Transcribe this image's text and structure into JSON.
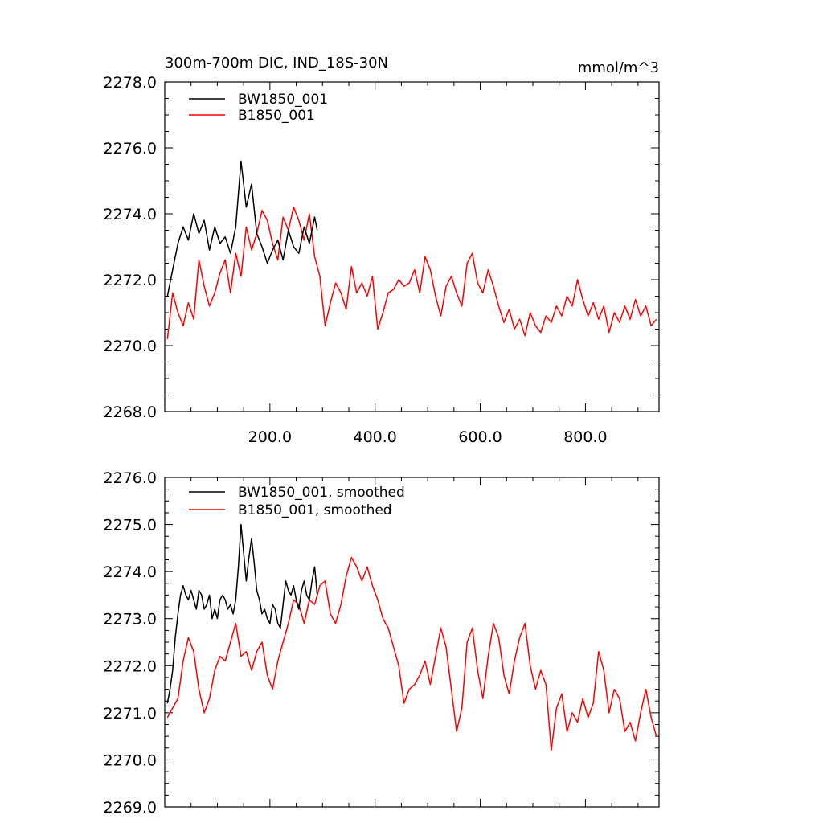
{
  "chart_data": [
    {
      "type": "line",
      "title": "300m-700m DIC, IND_18S-30N",
      "units": "mmol/m^3",
      "xlim": [
        0,
        940
      ],
      "ylim": [
        2268.0,
        2278.0
      ],
      "x_ticks": [
        200,
        400,
        600,
        800
      ],
      "x_tick_labels": [
        "200.0",
        "400.0",
        "600.0",
        "800.0"
      ],
      "y_ticks": [
        2268,
        2270,
        2272,
        2274,
        2276,
        2278
      ],
      "y_tick_labels": [
        "2268.0",
        "2270.0",
        "2272.0",
        "2274.0",
        "2276.0",
        "2278.0"
      ],
      "legend_position": "top-left",
      "series": [
        {
          "name": "BW1850_001",
          "color": "#000000",
          "x": [
            5,
            15,
            25,
            35,
            45,
            55,
            65,
            75,
            85,
            95,
            105,
            115,
            125,
            135,
            145,
            155,
            165,
            175,
            185,
            195,
            205,
            215,
            225,
            235,
            245,
            255,
            265,
            275,
            285,
            290
          ],
          "values": [
            2271.5,
            2272.3,
            2273.1,
            2273.6,
            2273.2,
            2274.0,
            2273.4,
            2273.8,
            2272.9,
            2273.6,
            2273.1,
            2273.3,
            2272.8,
            2273.6,
            2275.6,
            2274.2,
            2274.9,
            2273.4,
            2273.0,
            2272.5,
            2272.9,
            2273.2,
            2272.6,
            2273.5,
            2273.0,
            2272.8,
            2273.6,
            2273.1,
            2273.9,
            2273.5
          ]
        },
        {
          "name": "B1850_001",
          "color": "#ff0000",
          "x": [
            5,
            15,
            25,
            35,
            45,
            55,
            65,
            75,
            85,
            95,
            105,
            115,
            125,
            135,
            145,
            155,
            165,
            175,
            185,
            195,
            205,
            215,
            225,
            235,
            245,
            255,
            265,
            275,
            285,
            295,
            305,
            315,
            325,
            335,
            345,
            355,
            365,
            375,
            385,
            395,
            405,
            415,
            425,
            435,
            445,
            455,
            465,
            475,
            485,
            495,
            505,
            515,
            525,
            535,
            545,
            555,
            565,
            575,
            585,
            595,
            605,
            615,
            625,
            635,
            645,
            655,
            665,
            675,
            685,
            695,
            705,
            715,
            725,
            735,
            745,
            755,
            765,
            775,
            785,
            795,
            805,
            815,
            825,
            835,
            845,
            855,
            865,
            875,
            885,
            895,
            905,
            915,
            925,
            935
          ],
          "values": [
            2270.2,
            2271.6,
            2271.0,
            2270.6,
            2271.3,
            2270.8,
            2272.6,
            2271.8,
            2271.2,
            2271.6,
            2272.2,
            2272.6,
            2271.6,
            2272.8,
            2272.1,
            2273.6,
            2272.9,
            2273.4,
            2274.1,
            2273.8,
            2273.1,
            2272.6,
            2273.9,
            2273.5,
            2274.2,
            2273.8,
            2273.2,
            2274.0,
            2272.7,
            2272.1,
            2270.6,
            2271.3,
            2271.9,
            2271.6,
            2271.1,
            2272.4,
            2271.6,
            2271.9,
            2271.5,
            2272.1,
            2270.5,
            2271.0,
            2271.6,
            2271.7,
            2272.0,
            2271.8,
            2271.9,
            2272.3,
            2271.6,
            2272.7,
            2272.3,
            2271.5,
            2270.9,
            2271.8,
            2272.1,
            2271.6,
            2271.2,
            2272.5,
            2272.8,
            2271.9,
            2271.6,
            2272.3,
            2271.8,
            2271.2,
            2270.7,
            2271.1,
            2270.5,
            2270.8,
            2270.3,
            2271.0,
            2270.6,
            2270.4,
            2270.9,
            2270.7,
            2271.2,
            2270.9,
            2271.5,
            2271.2,
            2272.0,
            2271.4,
            2270.9,
            2271.3,
            2270.8,
            2271.2,
            2270.4,
            2271.0,
            2270.7,
            2271.2,
            2270.8,
            2271.4,
            2270.9,
            2271.2,
            2270.6,
            2270.8
          ]
        }
      ]
    },
    {
      "type": "line",
      "title": "",
      "xlim": [
        0,
        940
      ],
      "ylim": [
        2269.0,
        2276.0
      ],
      "x_ticks": [
        200,
        400,
        600,
        800
      ],
      "x_tick_labels": [
        "",
        "",
        "",
        ""
      ],
      "y_ticks": [
        2269,
        2270,
        2271,
        2272,
        2273,
        2274,
        2275,
        2276
      ],
      "y_tick_labels": [
        "2269.0",
        "2270.0",
        "2271.0",
        "2272.0",
        "2273.0",
        "2274.0",
        "2275.0",
        "2276.0"
      ],
      "legend_position": "top-left",
      "series": [
        {
          "name": "BW1850_001, smoothed",
          "color": "#000000",
          "x": [
            5,
            10,
            15,
            20,
            25,
            30,
            35,
            40,
            45,
            50,
            55,
            60,
            65,
            70,
            75,
            80,
            85,
            90,
            95,
            100,
            105,
            110,
            115,
            120,
            125,
            130,
            135,
            140,
            145,
            150,
            155,
            160,
            165,
            170,
            175,
            180,
            185,
            190,
            195,
            200,
            205,
            210,
            215,
            220,
            225,
            230,
            235,
            240,
            245,
            250,
            255,
            260,
            265,
            270,
            275,
            280,
            285,
            290
          ],
          "values": [
            2271.2,
            2271.5,
            2271.9,
            2272.6,
            2273.1,
            2273.5,
            2273.7,
            2273.5,
            2273.4,
            2273.6,
            2273.4,
            2273.2,
            2273.6,
            2273.5,
            2273.2,
            2273.3,
            2273.5,
            2273.0,
            2273.2,
            2273.0,
            2273.4,
            2273.5,
            2273.4,
            2273.2,
            2273.3,
            2273.1,
            2273.4,
            2274.1,
            2275.0,
            2274.4,
            2273.8,
            2274.3,
            2274.7,
            2274.2,
            2273.6,
            2273.4,
            2273.1,
            2273.2,
            2273.0,
            2272.9,
            2273.3,
            2273.2,
            2272.9,
            2272.8,
            2273.3,
            2273.8,
            2273.6,
            2273.5,
            2273.7,
            2273.4,
            2273.2,
            2273.6,
            2273.8,
            2273.5,
            2273.4,
            2273.8,
            2274.1,
            2273.5
          ]
        },
        {
          "name": "B1850_001, smoothed",
          "color": "#ff0000",
          "x": [
            5,
            15,
            25,
            35,
            45,
            55,
            65,
            75,
            85,
            95,
            105,
            115,
            125,
            135,
            145,
            155,
            165,
            175,
            185,
            195,
            205,
            215,
            225,
            235,
            245,
            255,
            265,
            275,
            285,
            295,
            305,
            315,
            325,
            335,
            345,
            355,
            365,
            375,
            385,
            395,
            405,
            415,
            425,
            435,
            445,
            455,
            465,
            475,
            485,
            495,
            505,
            515,
            525,
            535,
            545,
            555,
            565,
            575,
            585,
            595,
            605,
            615,
            625,
            635,
            645,
            655,
            665,
            675,
            685,
            695,
            705,
            715,
            725,
            735,
            745,
            755,
            765,
            775,
            785,
            795,
            805,
            815,
            825,
            835,
            845,
            855,
            865,
            875,
            885,
            895,
            905,
            915,
            925,
            935
          ],
          "values": [
            2270.9,
            2271.1,
            2271.3,
            2272.1,
            2272.6,
            2272.3,
            2271.5,
            2271.0,
            2271.3,
            2271.9,
            2272.2,
            2272.1,
            2272.5,
            2272.9,
            2272.2,
            2272.3,
            2271.9,
            2272.3,
            2272.5,
            2271.8,
            2271.5,
            2272.1,
            2272.5,
            2272.9,
            2273.4,
            2273.3,
            2272.9,
            2273.4,
            2273.3,
            2273.7,
            2273.8,
            2273.1,
            2272.9,
            2273.3,
            2273.9,
            2274.3,
            2274.1,
            2273.8,
            2274.1,
            2273.7,
            2273.4,
            2273.0,
            2272.8,
            2272.4,
            2272.0,
            2271.2,
            2271.5,
            2271.6,
            2271.8,
            2272.1,
            2271.6,
            2272.2,
            2272.8,
            2272.4,
            2271.5,
            2270.6,
            2271.1,
            2272.5,
            2272.8,
            2271.9,
            2271.3,
            2272.2,
            2272.9,
            2272.6,
            2271.8,
            2271.4,
            2272.1,
            2272.6,
            2272.9,
            2272.0,
            2271.5,
            2271.9,
            2271.6,
            2270.2,
            2271.1,
            2271.4,
            2270.6,
            2271.0,
            2270.8,
            2271.3,
            2270.9,
            2271.2,
            2272.3,
            2271.9,
            2271.0,
            2271.5,
            2271.3,
            2270.6,
            2270.8,
            2270.4,
            2271.0,
            2271.5,
            2270.9,
            2270.5
          ]
        }
      ]
    }
  ]
}
